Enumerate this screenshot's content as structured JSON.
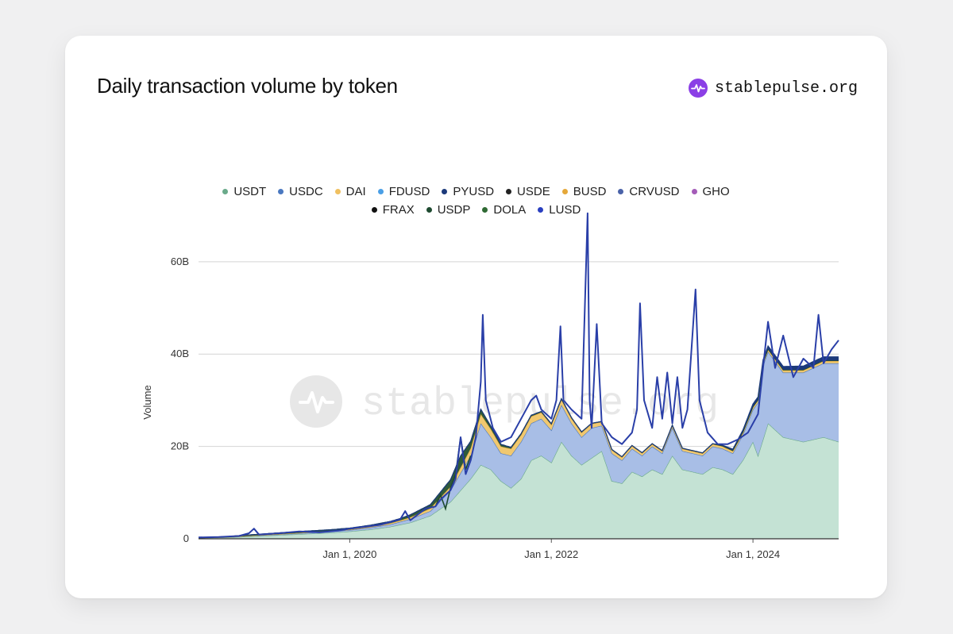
{
  "card": {
    "title": "Daily transaction volume by token",
    "brand": {
      "name": "stablepulse.org",
      "icon": "pulse-icon",
      "color": "#8b3fe6"
    },
    "watermark": "stablepulse.org"
  },
  "chart_data": {
    "type": "area",
    "stacked": true,
    "title": "Daily transaction volume by token",
    "xlabel": "",
    "ylabel": "Volume",
    "ylim": [
      0,
      72
    ],
    "yticks": [
      {
        "value": 0,
        "label": "0"
      },
      {
        "value": 20,
        "label": "20B"
      },
      {
        "value": 40,
        "label": "40B"
      },
      {
        "value": 60,
        "label": "60B"
      }
    ],
    "xlim": [
      2018.5,
      2024.85
    ],
    "xticks": [
      {
        "value": 2020.0,
        "label": "Jan 1, 2020"
      },
      {
        "value": 2022.0,
        "label": "Jan 1, 2022"
      },
      {
        "value": 2024.0,
        "label": "Jan 1, 2024"
      }
    ],
    "grid": true,
    "legend": [
      {
        "name": "USDT",
        "color": "#6aaa8a"
      },
      {
        "name": "USDC",
        "color": "#4a78c0"
      },
      {
        "name": "DAI",
        "color": "#f0c060"
      },
      {
        "name": "FDUSD",
        "color": "#4a9fe6"
      },
      {
        "name": "PYUSD",
        "color": "#1c3a7a"
      },
      {
        "name": "USDE",
        "color": "#222222"
      },
      {
        "name": "BUSD",
        "color": "#e5a83a"
      },
      {
        "name": "CRVUSD",
        "color": "#4a62a8"
      },
      {
        "name": "GHO",
        "color": "#a45cb8"
      },
      {
        "name": "FRAX",
        "color": "#111111"
      },
      {
        "name": "USDP",
        "color": "#1e4a30"
      },
      {
        "name": "DOLA",
        "color": "#2f6a34"
      },
      {
        "name": "LUSD",
        "color": "#2a3fc0"
      }
    ],
    "series": [
      {
        "name": "USDT",
        "fill": "#c4e2d4",
        "stroke": "#6aaa8a",
        "points": [
          [
            2018.5,
            0.2
          ],
          [
            2018.8,
            0.3
          ],
          [
            2019.0,
            0.5
          ],
          [
            2019.2,
            0.7
          ],
          [
            2019.5,
            1.0
          ],
          [
            2019.8,
            1.3
          ],
          [
            2020.0,
            1.6
          ],
          [
            2020.2,
            2.0
          ],
          [
            2020.4,
            2.6
          ],
          [
            2020.6,
            3.5
          ],
          [
            2020.8,
            5.0
          ],
          [
            2021.0,
            8.0
          ],
          [
            2021.2,
            13.0
          ],
          [
            2021.3,
            16.0
          ],
          [
            2021.4,
            15.0
          ],
          [
            2021.5,
            12.5
          ],
          [
            2021.6,
            11.0
          ],
          [
            2021.7,
            13.0
          ],
          [
            2021.8,
            17.0
          ],
          [
            2021.9,
            18.0
          ],
          [
            2022.0,
            16.5
          ],
          [
            2022.1,
            21.0
          ],
          [
            2022.2,
            18.0
          ],
          [
            2022.3,
            16.0
          ],
          [
            2022.4,
            17.5
          ],
          [
            2022.5,
            19.0
          ],
          [
            2022.6,
            12.5
          ],
          [
            2022.7,
            12.0
          ],
          [
            2022.8,
            14.5
          ],
          [
            2022.9,
            13.5
          ],
          [
            2023.0,
            15.0
          ],
          [
            2023.1,
            14.0
          ],
          [
            2023.2,
            18.0
          ],
          [
            2023.3,
            15.0
          ],
          [
            2023.4,
            14.5
          ],
          [
            2023.5,
            14.0
          ],
          [
            2023.6,
            15.5
          ],
          [
            2023.7,
            15.0
          ],
          [
            2023.8,
            14.0
          ],
          [
            2023.9,
            17.0
          ],
          [
            2024.0,
            21.0
          ],
          [
            2024.05,
            18.0
          ],
          [
            2024.15,
            25.0
          ],
          [
            2024.3,
            22.0
          ],
          [
            2024.5,
            21.0
          ],
          [
            2024.7,
            22.0
          ],
          [
            2024.85,
            21.0
          ]
        ]
      },
      {
        "name": "USDC",
        "fill": "#a8bee6",
        "stroke": "#4a78c0",
        "points": [
          [
            2018.5,
            0.0
          ],
          [
            2019.0,
            0.1
          ],
          [
            2019.5,
            0.2
          ],
          [
            2020.0,
            0.3
          ],
          [
            2020.4,
            0.5
          ],
          [
            2020.8,
            1.0
          ],
          [
            2021.0,
            2.5
          ],
          [
            2021.2,
            5.0
          ],
          [
            2021.3,
            9.0
          ],
          [
            2021.4,
            7.0
          ],
          [
            2021.5,
            6.0
          ],
          [
            2021.6,
            7.0
          ],
          [
            2021.7,
            8.0
          ],
          [
            2021.8,
            8.0
          ],
          [
            2021.9,
            8.0
          ],
          [
            2022.0,
            7.0
          ],
          [
            2022.1,
            8.0
          ],
          [
            2022.2,
            7.0
          ],
          [
            2022.3,
            6.0
          ],
          [
            2022.4,
            6.5
          ],
          [
            2022.5,
            5.5
          ],
          [
            2022.6,
            6.0
          ],
          [
            2022.7,
            5.0
          ],
          [
            2022.8,
            5.0
          ],
          [
            2022.9,
            4.5
          ],
          [
            2023.0,
            5.0
          ],
          [
            2023.1,
            4.5
          ],
          [
            2023.2,
            6.0
          ],
          [
            2023.3,
            4.0
          ],
          [
            2023.4,
            4.0
          ],
          [
            2023.5,
            4.0
          ],
          [
            2023.6,
            4.5
          ],
          [
            2023.7,
            4.5
          ],
          [
            2023.8,
            4.5
          ],
          [
            2023.9,
            5.5
          ],
          [
            2024.0,
            7.0
          ],
          [
            2024.1,
            16.0
          ],
          [
            2024.3,
            14.0
          ],
          [
            2024.5,
            15.0
          ],
          [
            2024.7,
            16.0
          ],
          [
            2024.85,
            17.0
          ]
        ]
      },
      {
        "name": "DAI",
        "fill": "#f0c870",
        "stroke": "#d9a83a",
        "points": [
          [
            2018.5,
            0.0
          ],
          [
            2020.0,
            0.1
          ],
          [
            2020.5,
            0.3
          ],
          [
            2021.0,
            0.8
          ],
          [
            2021.3,
            2.0
          ],
          [
            2021.5,
            1.5
          ],
          [
            2021.8,
            1.5
          ],
          [
            2022.0,
            1.2
          ],
          [
            2022.3,
            1.0
          ],
          [
            2022.5,
            0.8
          ],
          [
            2022.8,
            0.6
          ],
          [
            2023.0,
            0.5
          ],
          [
            2023.5,
            0.5
          ],
          [
            2024.0,
            0.5
          ],
          [
            2024.85,
            0.5
          ]
        ]
      },
      {
        "name": "USDP",
        "fill": "#2f5a3a",
        "stroke": "#1e4a30",
        "points": [
          [
            2018.5,
            0.0
          ],
          [
            2019.0,
            0.2
          ],
          [
            2019.5,
            0.3
          ],
          [
            2020.0,
            0.3
          ],
          [
            2020.5,
            0.4
          ],
          [
            2020.8,
            0.8
          ],
          [
            2021.0,
            1.5
          ],
          [
            2021.1,
            2.5
          ],
          [
            2021.2,
            1.5
          ],
          [
            2021.4,
            0.6
          ],
          [
            2021.6,
            0.3
          ],
          [
            2022.0,
            0.2
          ],
          [
            2022.5,
            0.1
          ],
          [
            2023.0,
            0.1
          ],
          [
            2024.85,
            0.1
          ]
        ]
      },
      {
        "name": "PYUSD",
        "fill": "#1c3a7a",
        "stroke": "#1c3a7a",
        "points": [
          [
            2018.5,
            0.0
          ],
          [
            2023.6,
            0.0
          ],
          [
            2023.8,
            0.3
          ],
          [
            2024.0,
            0.6
          ],
          [
            2024.5,
            0.8
          ],
          [
            2024.85,
            0.8
          ]
        ]
      }
    ],
    "total_line": {
      "name": "Total",
      "stroke": "#2a3fa8",
      "points": [
        [
          2018.5,
          0.3
        ],
        [
          2018.7,
          0.4
        ],
        [
          2018.9,
          0.6
        ],
        [
          2019.0,
          1.2
        ],
        [
          2019.05,
          2.2
        ],
        [
          2019.1,
          0.9
        ],
        [
          2019.3,
          1.2
        ],
        [
          2019.5,
          1.6
        ],
        [
          2019.7,
          1.4
        ],
        [
          2019.9,
          1.8
        ],
        [
          2020.0,
          2.2
        ],
        [
          2020.15,
          2.6
        ],
        [
          2020.3,
          3.0
        ],
        [
          2020.5,
          4.2
        ],
        [
          2020.55,
          6.0
        ],
        [
          2020.6,
          4.0
        ],
        [
          2020.75,
          6.5
        ],
        [
          2020.85,
          7.0
        ],
        [
          2020.9,
          8.5
        ],
        [
          2021.0,
          10.5
        ],
        [
          2021.05,
          13.0
        ],
        [
          2021.1,
          22.0
        ],
        [
          2021.15,
          14.0
        ],
        [
          2021.2,
          17.0
        ],
        [
          2021.25,
          22.0
        ],
        [
          2021.3,
          34.0
        ],
        [
          2021.32,
          48.5
        ],
        [
          2021.35,
          30.0
        ],
        [
          2021.42,
          24.0
        ],
        [
          2021.5,
          21.0
        ],
        [
          2021.6,
          22.0
        ],
        [
          2021.7,
          26.0
        ],
        [
          2021.8,
          30.0
        ],
        [
          2021.85,
          31.0
        ],
        [
          2021.9,
          28.0
        ],
        [
          2022.0,
          26.0
        ],
        [
          2022.05,
          30.0
        ],
        [
          2022.09,
          46.0
        ],
        [
          2022.12,
          30.0
        ],
        [
          2022.2,
          28.0
        ],
        [
          2022.3,
          26.0
        ],
        [
          2022.36,
          70.5
        ],
        [
          2022.38,
          30.0
        ],
        [
          2022.4,
          24.0
        ],
        [
          2022.45,
          46.5
        ],
        [
          2022.5,
          25.0
        ],
        [
          2022.6,
          22.0
        ],
        [
          2022.7,
          20.5
        ],
        [
          2022.8,
          23.0
        ],
        [
          2022.85,
          28.0
        ],
        [
          2022.88,
          51.0
        ],
        [
          2022.92,
          30.0
        ],
        [
          2023.0,
          24.0
        ],
        [
          2023.05,
          35.0
        ],
        [
          2023.1,
          26.0
        ],
        [
          2023.15,
          36.0
        ],
        [
          2023.2,
          25.0
        ],
        [
          2023.25,
          35.0
        ],
        [
          2023.3,
          24.0
        ],
        [
          2023.35,
          28.0
        ],
        [
          2023.43,
          54.0
        ],
        [
          2023.47,
          30.0
        ],
        [
          2023.55,
          23.0
        ],
        [
          2023.65,
          20.5
        ],
        [
          2023.75,
          20.5
        ],
        [
          2023.85,
          21.5
        ],
        [
          2023.95,
          23.0
        ],
        [
          2024.05,
          27.0
        ],
        [
          2024.15,
          47.0
        ],
        [
          2024.22,
          37.0
        ],
        [
          2024.3,
          44.0
        ],
        [
          2024.4,
          35.0
        ],
        [
          2024.5,
          39.0
        ],
        [
          2024.6,
          37.0
        ],
        [
          2024.65,
          48.5
        ],
        [
          2024.7,
          38.0
        ],
        [
          2024.78,
          41.0
        ],
        [
          2024.85,
          43.0
        ]
      ]
    },
    "early_spikes": {
      "name": "USDP",
      "stroke": "#1e4a30",
      "points": [
        [
          2020.85,
          7.0
        ],
        [
          2020.9,
          9.5
        ],
        [
          2020.95,
          6.5
        ],
        [
          2021.0,
          11.0
        ],
        [
          2021.05,
          14.0
        ],
        [
          2021.1,
          22.0
        ],
        [
          2021.15,
          15.0
        ],
        [
          2021.2,
          18.0
        ]
      ]
    }
  }
}
